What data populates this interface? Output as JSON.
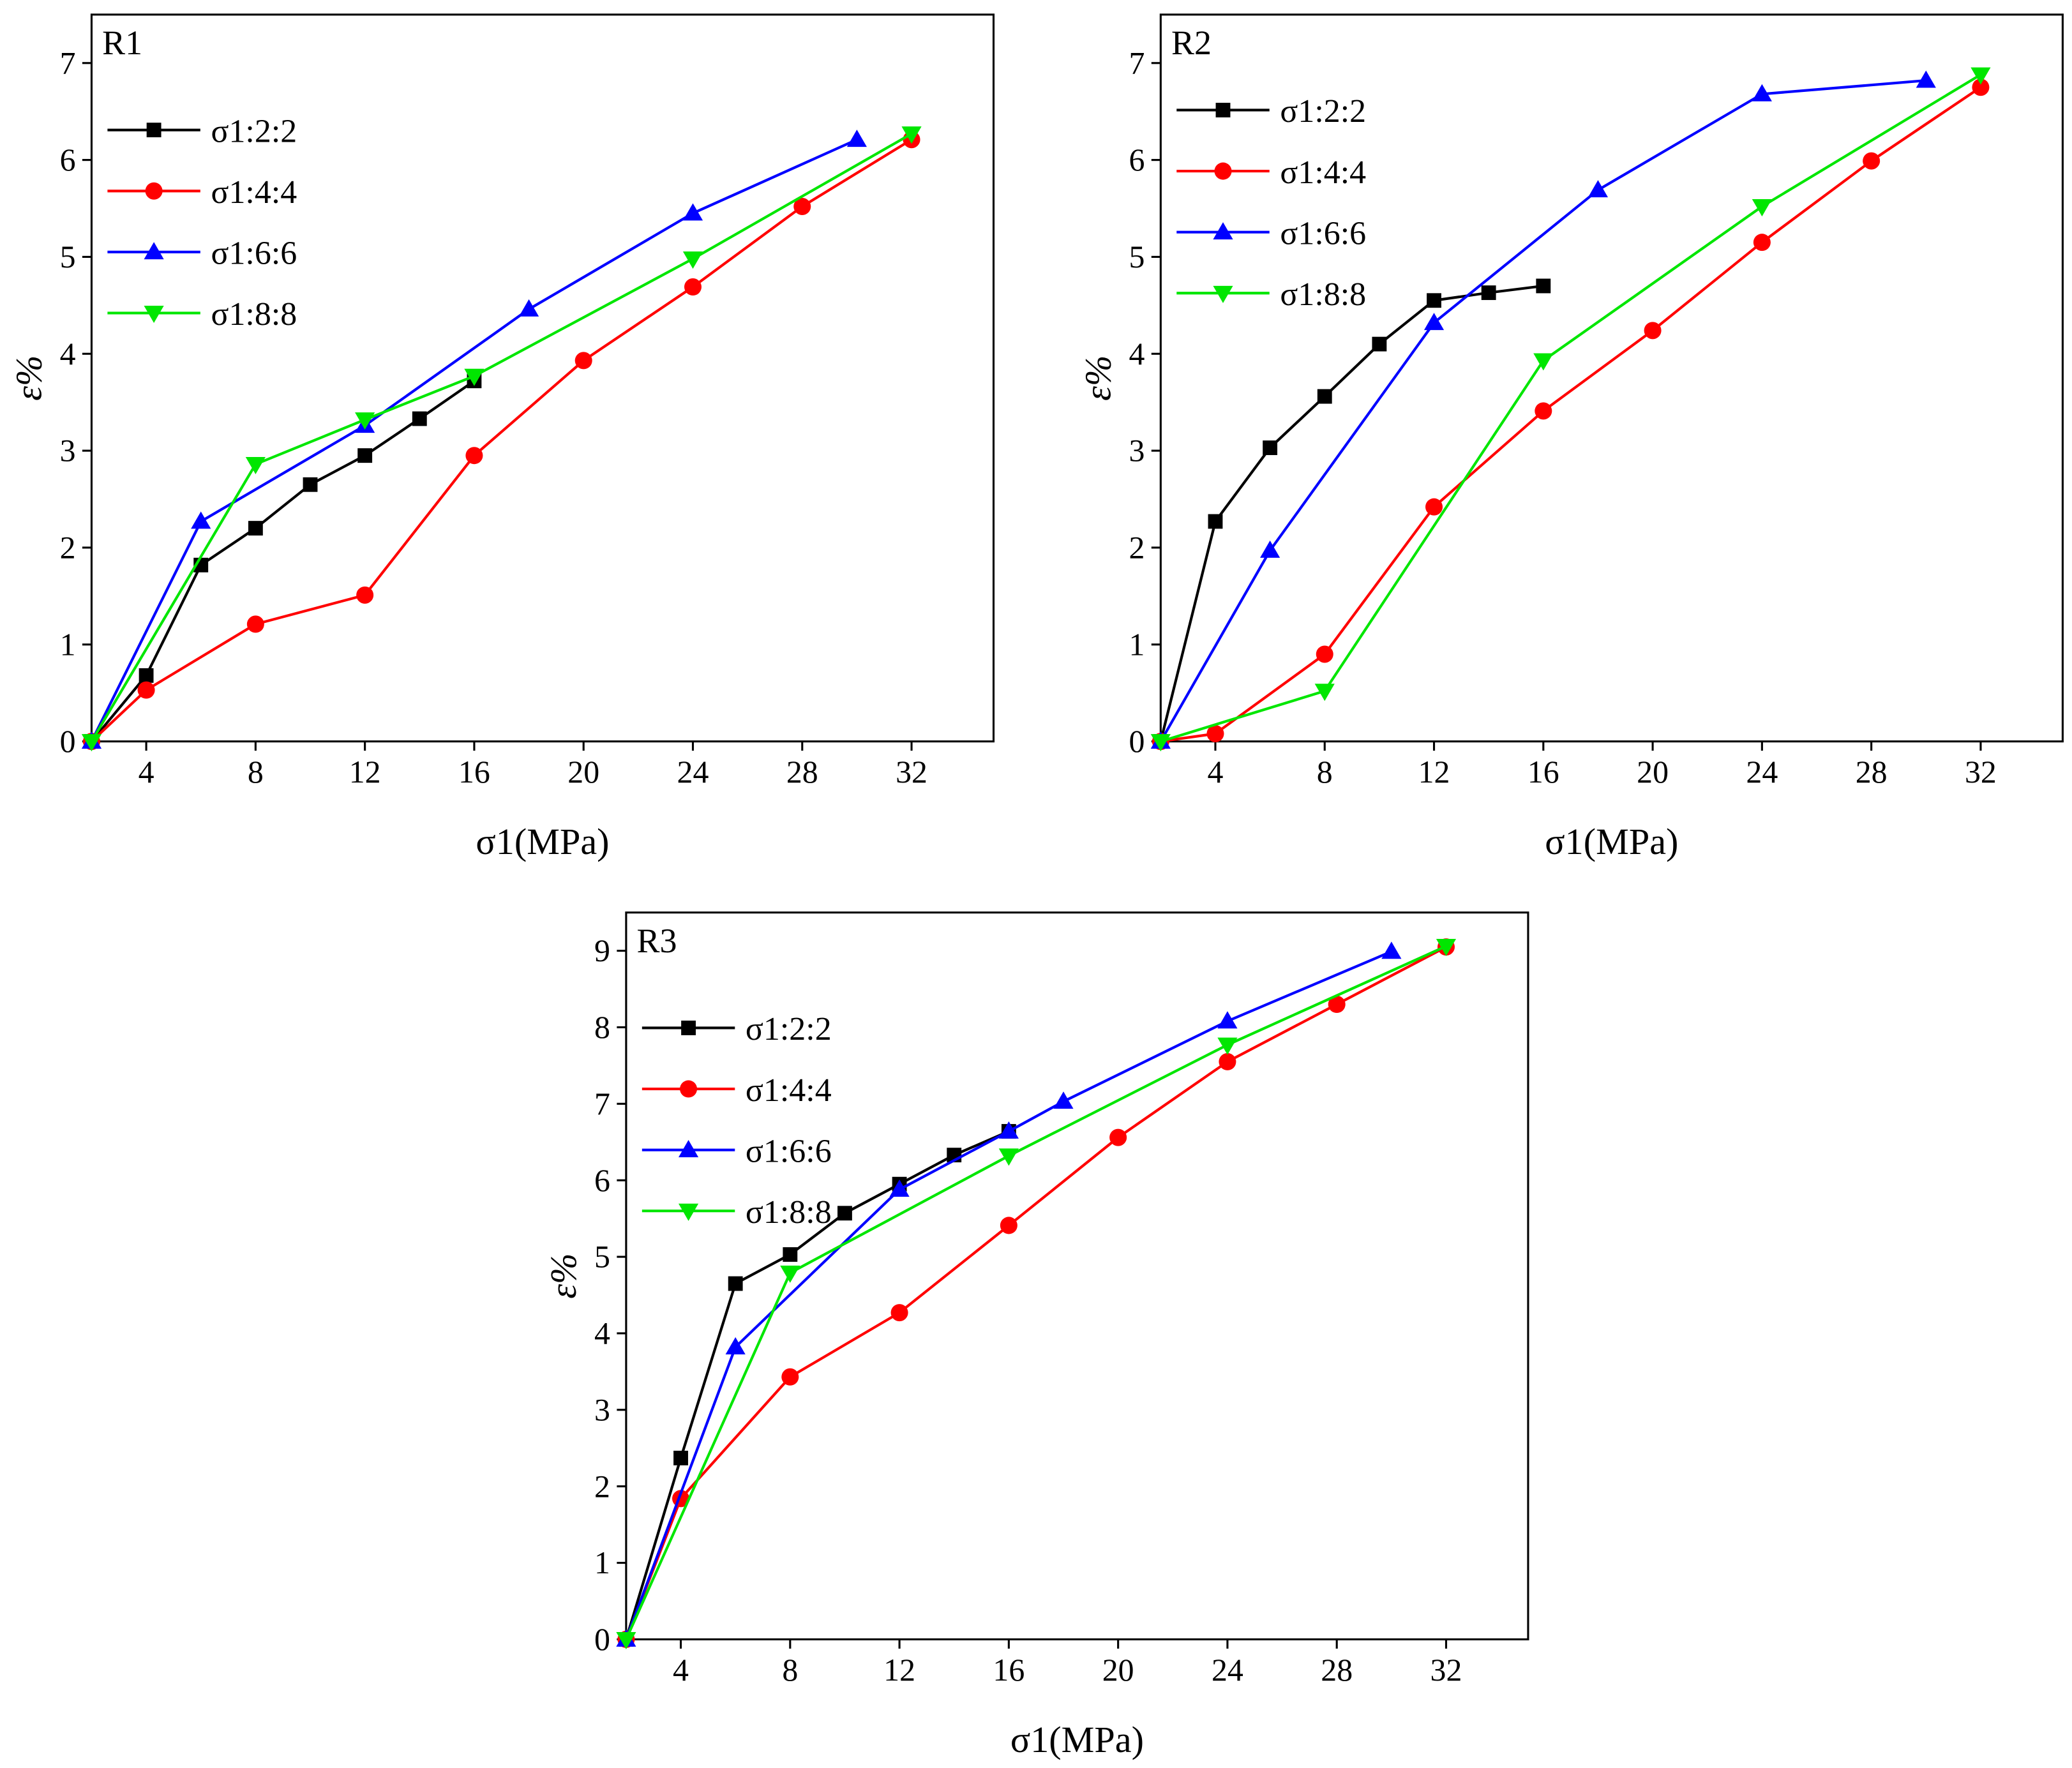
{
  "chart_data": [
    {
      "type": "line",
      "panel_label": "R1",
      "xlabel": "σ1(MPa)",
      "ylabel": "ε%",
      "xlim": [
        2,
        35
      ],
      "ylim": [
        0,
        7.5
      ],
      "xticks": [
        4,
        8,
        12,
        16,
        20,
        24,
        28,
        32
      ],
      "yticks": [
        0,
        1,
        2,
        3,
        4,
        5,
        6,
        7
      ],
      "grid": false,
      "legend": "top-left",
      "series": [
        {
          "name": "σ1:2:2",
          "color": "#000000",
          "marker": "square",
          "x": [
            2,
            4,
            6,
            8,
            10,
            12,
            14,
            16
          ],
          "y": [
            0,
            0.68,
            1.82,
            2.2,
            2.65,
            2.95,
            3.33,
            3.72
          ]
        },
        {
          "name": "σ1:4:4",
          "color": "#ff0000",
          "marker": "circle",
          "x": [
            2,
            4,
            8,
            12,
            16,
            20,
            24,
            28,
            32
          ],
          "y": [
            0,
            0.53,
            1.21,
            1.51,
            2.95,
            3.93,
            4.69,
            5.52,
            6.21
          ]
        },
        {
          "name": "σ1:6:6",
          "color": "#0000ff",
          "marker": "triangle-up",
          "x": [
            2,
            6,
            12,
            18,
            24,
            30
          ],
          "y": [
            0,
            2.27,
            3.26,
            4.46,
            5.45,
            6.21
          ]
        },
        {
          "name": "σ1:8:8",
          "color": "#00e600",
          "marker": "triangle-down",
          "x": [
            2,
            8,
            12,
            16,
            24,
            32
          ],
          "y": [
            0,
            2.86,
            3.32,
            3.77,
            4.98,
            6.27
          ]
        }
      ]
    },
    {
      "type": "line",
      "panel_label": "R2",
      "xlabel": "σ1(MPa)",
      "ylabel": "ε%",
      "xlim": [
        2,
        35
      ],
      "ylim": [
        0,
        7.5
      ],
      "xticks": [
        4,
        8,
        12,
        16,
        20,
        24,
        28,
        32
      ],
      "yticks": [
        0,
        1,
        2,
        3,
        4,
        5,
        6,
        7
      ],
      "grid": false,
      "legend": "top-left",
      "series": [
        {
          "name": "σ1:2:2",
          "color": "#000000",
          "marker": "square",
          "x": [
            2,
            4,
            6,
            8,
            10,
            12,
            14,
            16
          ],
          "y": [
            0,
            2.27,
            3.03,
            3.56,
            4.1,
            4.55,
            4.63,
            4.7
          ]
        },
        {
          "name": "σ1:4:4",
          "color": "#ff0000",
          "marker": "circle",
          "x": [
            2,
            4,
            8,
            12,
            16,
            20,
            24,
            28,
            32
          ],
          "y": [
            0,
            0.08,
            0.9,
            2.42,
            3.41,
            4.24,
            5.15,
            5.99,
            6.75
          ]
        },
        {
          "name": "σ1:6:6",
          "color": "#0000ff",
          "marker": "triangle-up",
          "x": [
            2,
            6,
            12,
            18,
            24,
            30
          ],
          "y": [
            0,
            1.97,
            4.32,
            5.69,
            6.68,
            6.82
          ]
        },
        {
          "name": "σ1:8:8",
          "color": "#00e600",
          "marker": "triangle-down",
          "x": [
            2,
            8,
            16,
            24,
            32
          ],
          "y": [
            0,
            0.52,
            3.93,
            5.52,
            6.88
          ]
        }
      ]
    },
    {
      "type": "line",
      "panel_label": "R3",
      "xlabel": "σ1(MPa)",
      "ylabel": "ε%",
      "xlim": [
        2,
        35
      ],
      "ylim": [
        0,
        9.5
      ],
      "xticks": [
        4,
        8,
        12,
        16,
        20,
        24,
        28,
        32
      ],
      "yticks": [
        0,
        1,
        2,
        3,
        4,
        5,
        6,
        7,
        8,
        9
      ],
      "grid": false,
      "legend": "top-left",
      "series": [
        {
          "name": "σ1:2:2",
          "color": "#000000",
          "marker": "square",
          "x": [
            2,
            4,
            6,
            8,
            10,
            12,
            14,
            16
          ],
          "y": [
            0,
            2.37,
            4.65,
            5.03,
            5.57,
            5.95,
            6.33,
            6.64
          ]
        },
        {
          "name": "σ1:4:4",
          "color": "#ff0000",
          "marker": "circle",
          "x": [
            2,
            4,
            8,
            12,
            16,
            20,
            24,
            28,
            32
          ],
          "y": [
            0,
            1.84,
            3.43,
            4.27,
            5.41,
            6.56,
            7.55,
            8.3,
            9.05
          ]
        },
        {
          "name": "σ1:6:6",
          "color": "#0000ff",
          "marker": "triangle-up",
          "x": [
            2,
            6,
            12,
            16,
            18,
            24,
            30
          ],
          "y": [
            0,
            3.82,
            5.88,
            6.64,
            7.03,
            8.08,
            8.99
          ]
        },
        {
          "name": "σ1:8:8",
          "color": "#00e600",
          "marker": "triangle-down",
          "x": [
            2,
            8,
            16,
            24,
            32
          ],
          "y": [
            0,
            4.79,
            6.32,
            7.77,
            9.06
          ]
        }
      ]
    }
  ]
}
